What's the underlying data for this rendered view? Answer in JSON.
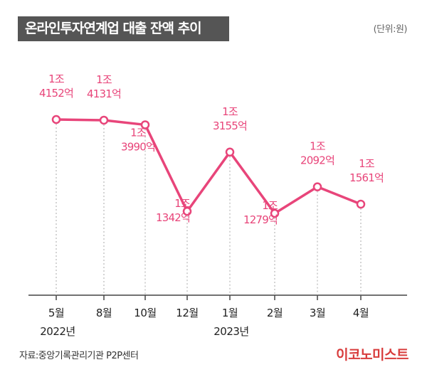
{
  "header": {
    "title": "온라인투자연계업 대출 잔액 추이",
    "unit": "(단위:원)"
  },
  "footer": {
    "source": "자료:중앙기록관리기관 P2P센터",
    "logo": "이코노미스트"
  },
  "colors": {
    "line": "#e8457a",
    "label": "#e8457a",
    "title_bg": "#555555",
    "axis": "#444444",
    "dotted": "#aaaaaa",
    "logo": "#d83c3c"
  },
  "chart_data": {
    "type": "line",
    "categories": [
      "5월",
      "8월",
      "10월",
      "12월",
      "1월",
      "2월",
      "3월",
      "4월"
    ],
    "years": [
      {
        "label": "2022년",
        "under": "5월"
      },
      {
        "label": "2023년",
        "under": "1월"
      }
    ],
    "series": [
      {
        "values": [
          14152,
          14131,
          13990,
          11342,
          13155,
          11279,
          12092,
          11561
        ],
        "data_labels": [
          [
            "1조",
            "4152억"
          ],
          [
            "1조",
            "4131억"
          ],
          [
            "1조",
            "3990억"
          ],
          [
            "1조",
            "1342억"
          ],
          [
            "1조",
            "3155억"
          ],
          [
            "1조",
            "1279억"
          ],
          [
            "1조",
            "2092억"
          ],
          [
            "1조",
            "1561억"
          ]
        ]
      }
    ],
    "value_unit": "억원",
    "legend": "none",
    "grid": false
  }
}
